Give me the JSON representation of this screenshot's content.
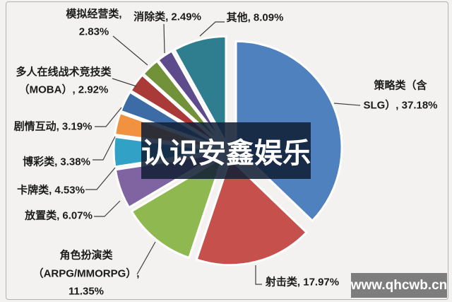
{
  "watermarks": {
    "center": "认识安鑫娱乐",
    "site": "www.qhcwb.cn"
  },
  "chart_data": {
    "type": "pie",
    "title": "",
    "unit": "%",
    "legend": "none",
    "label_style": "category-name-with-percent-callouts",
    "series": [
      {
        "name": "策略类（含SLG）",
        "value": 37.18,
        "color": "#4e81bd",
        "label_lines": [
          "策略类（含",
          "SLG）, 37.18%"
        ]
      },
      {
        "name": "射击类",
        "value": 17.97,
        "color": "#c5504c",
        "label_lines": [
          "射击类, 17.97%"
        ]
      },
      {
        "name": "角色扮演类（ARPG/MMORPG）",
        "value": 11.35,
        "color": "#8fb850",
        "label_lines": [
          "角色扮演类",
          "（ARPG/MMORPG）,",
          "11.35%"
        ]
      },
      {
        "name": "放置类",
        "value": 6.07,
        "color": "#8064a2",
        "label_lines": [
          "放置类, 6.07%"
        ]
      },
      {
        "name": "卡牌类",
        "value": 4.53,
        "color": "#31a2c6",
        "label_lines": [
          "卡牌类, 4.53%"
        ]
      },
      {
        "name": "博彩类",
        "value": 3.38,
        "color": "#f0923f",
        "label_lines": [
          "博彩类, 3.38%"
        ]
      },
      {
        "name": "剧情互动",
        "value": 3.19,
        "color": "#3d6ba6",
        "label_lines": [
          "剧情互动, 3.19%"
        ]
      },
      {
        "name": "多人在线战术竞技类（MOBA）",
        "value": 2.92,
        "color": "#a93a38",
        "label_lines": [
          "多人在线战术竞技类",
          "（MOBA）, 2.92%"
        ]
      },
      {
        "name": "模拟经营类",
        "value": 2.83,
        "color": "#729239",
        "label_lines": [
          "模拟经营类,",
          "2.83%"
        ]
      },
      {
        "name": "消除类",
        "value": 2.49,
        "color": "#5e4b8b",
        "label_lines": [
          "消除类, 2.49%"
        ]
      },
      {
        "name": "其他",
        "value": 8.09,
        "color": "#2e7e90",
        "label_lines": [
          "其他, 8.09%"
        ]
      }
    ]
  }
}
